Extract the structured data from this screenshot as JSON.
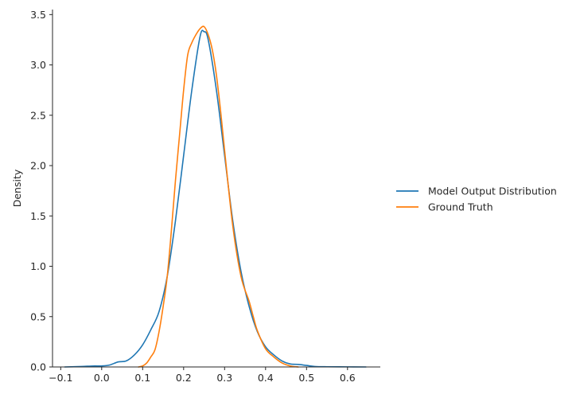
{
  "chart_data": {
    "type": "line",
    "title": "",
    "xlabel": "",
    "ylabel": "Density",
    "xlim": [
      -0.12,
      0.68
    ],
    "ylim": [
      0,
      3.55
    ],
    "xticks": [
      -0.1,
      0.0,
      0.1,
      0.2,
      0.3,
      0.4,
      0.5,
      0.6
    ],
    "xtick_labels": [
      "−0.1",
      "0.0",
      "0.1",
      "0.2",
      "0.3",
      "0.4",
      "0.5",
      "0.6"
    ],
    "yticks": [
      0.0,
      0.5,
      1.0,
      1.5,
      2.0,
      2.5,
      3.0,
      3.5
    ],
    "ytick_labels": [
      "0.0",
      "0.5",
      "1.0",
      "1.5",
      "2.0",
      "2.5",
      "3.0",
      "3.5"
    ],
    "grid": false,
    "legend_position": "right",
    "series": [
      {
        "name": "Model Output Distribution",
        "color": "#1f77b4",
        "x": [
          -0.09,
          -0.05,
          -0.02,
          0.0,
          0.02,
          0.04,
          0.06,
          0.08,
          0.1,
          0.12,
          0.14,
          0.16,
          0.18,
          0.2,
          0.22,
          0.24,
          0.25,
          0.26,
          0.28,
          0.3,
          0.32,
          0.34,
          0.36,
          0.38,
          0.4,
          0.42,
          0.44,
          0.46,
          0.48,
          0.5,
          0.52,
          0.55,
          0.6,
          0.645
        ],
        "y": [
          0.0,
          0.005,
          0.01,
          0.01,
          0.02,
          0.05,
          0.06,
          0.12,
          0.22,
          0.37,
          0.55,
          0.9,
          1.45,
          2.1,
          2.75,
          3.28,
          3.33,
          3.25,
          2.75,
          2.1,
          1.45,
          0.95,
          0.6,
          0.35,
          0.2,
          0.12,
          0.06,
          0.03,
          0.025,
          0.015,
          0.005,
          0.002,
          0.001,
          0.0
        ]
      },
      {
        "name": "Ground Truth",
        "color": "#ff7f0e",
        "x": [
          0.09,
          0.1,
          0.11,
          0.12,
          0.13,
          0.14,
          0.15,
          0.16,
          0.17,
          0.18,
          0.19,
          0.2,
          0.21,
          0.22,
          0.23,
          0.24,
          0.25,
          0.26,
          0.27,
          0.28,
          0.29,
          0.3,
          0.32,
          0.34,
          0.36,
          0.37,
          0.38,
          0.4,
          0.42,
          0.44,
          0.46,
          0.48
        ],
        "y": [
          0.0,
          0.01,
          0.04,
          0.1,
          0.17,
          0.35,
          0.6,
          0.9,
          1.35,
          1.85,
          2.3,
          2.75,
          3.1,
          3.22,
          3.3,
          3.36,
          3.38,
          3.3,
          3.15,
          2.9,
          2.55,
          2.15,
          1.4,
          0.9,
          0.65,
          0.5,
          0.36,
          0.18,
          0.1,
          0.04,
          0.01,
          0.0
        ]
      }
    ]
  }
}
